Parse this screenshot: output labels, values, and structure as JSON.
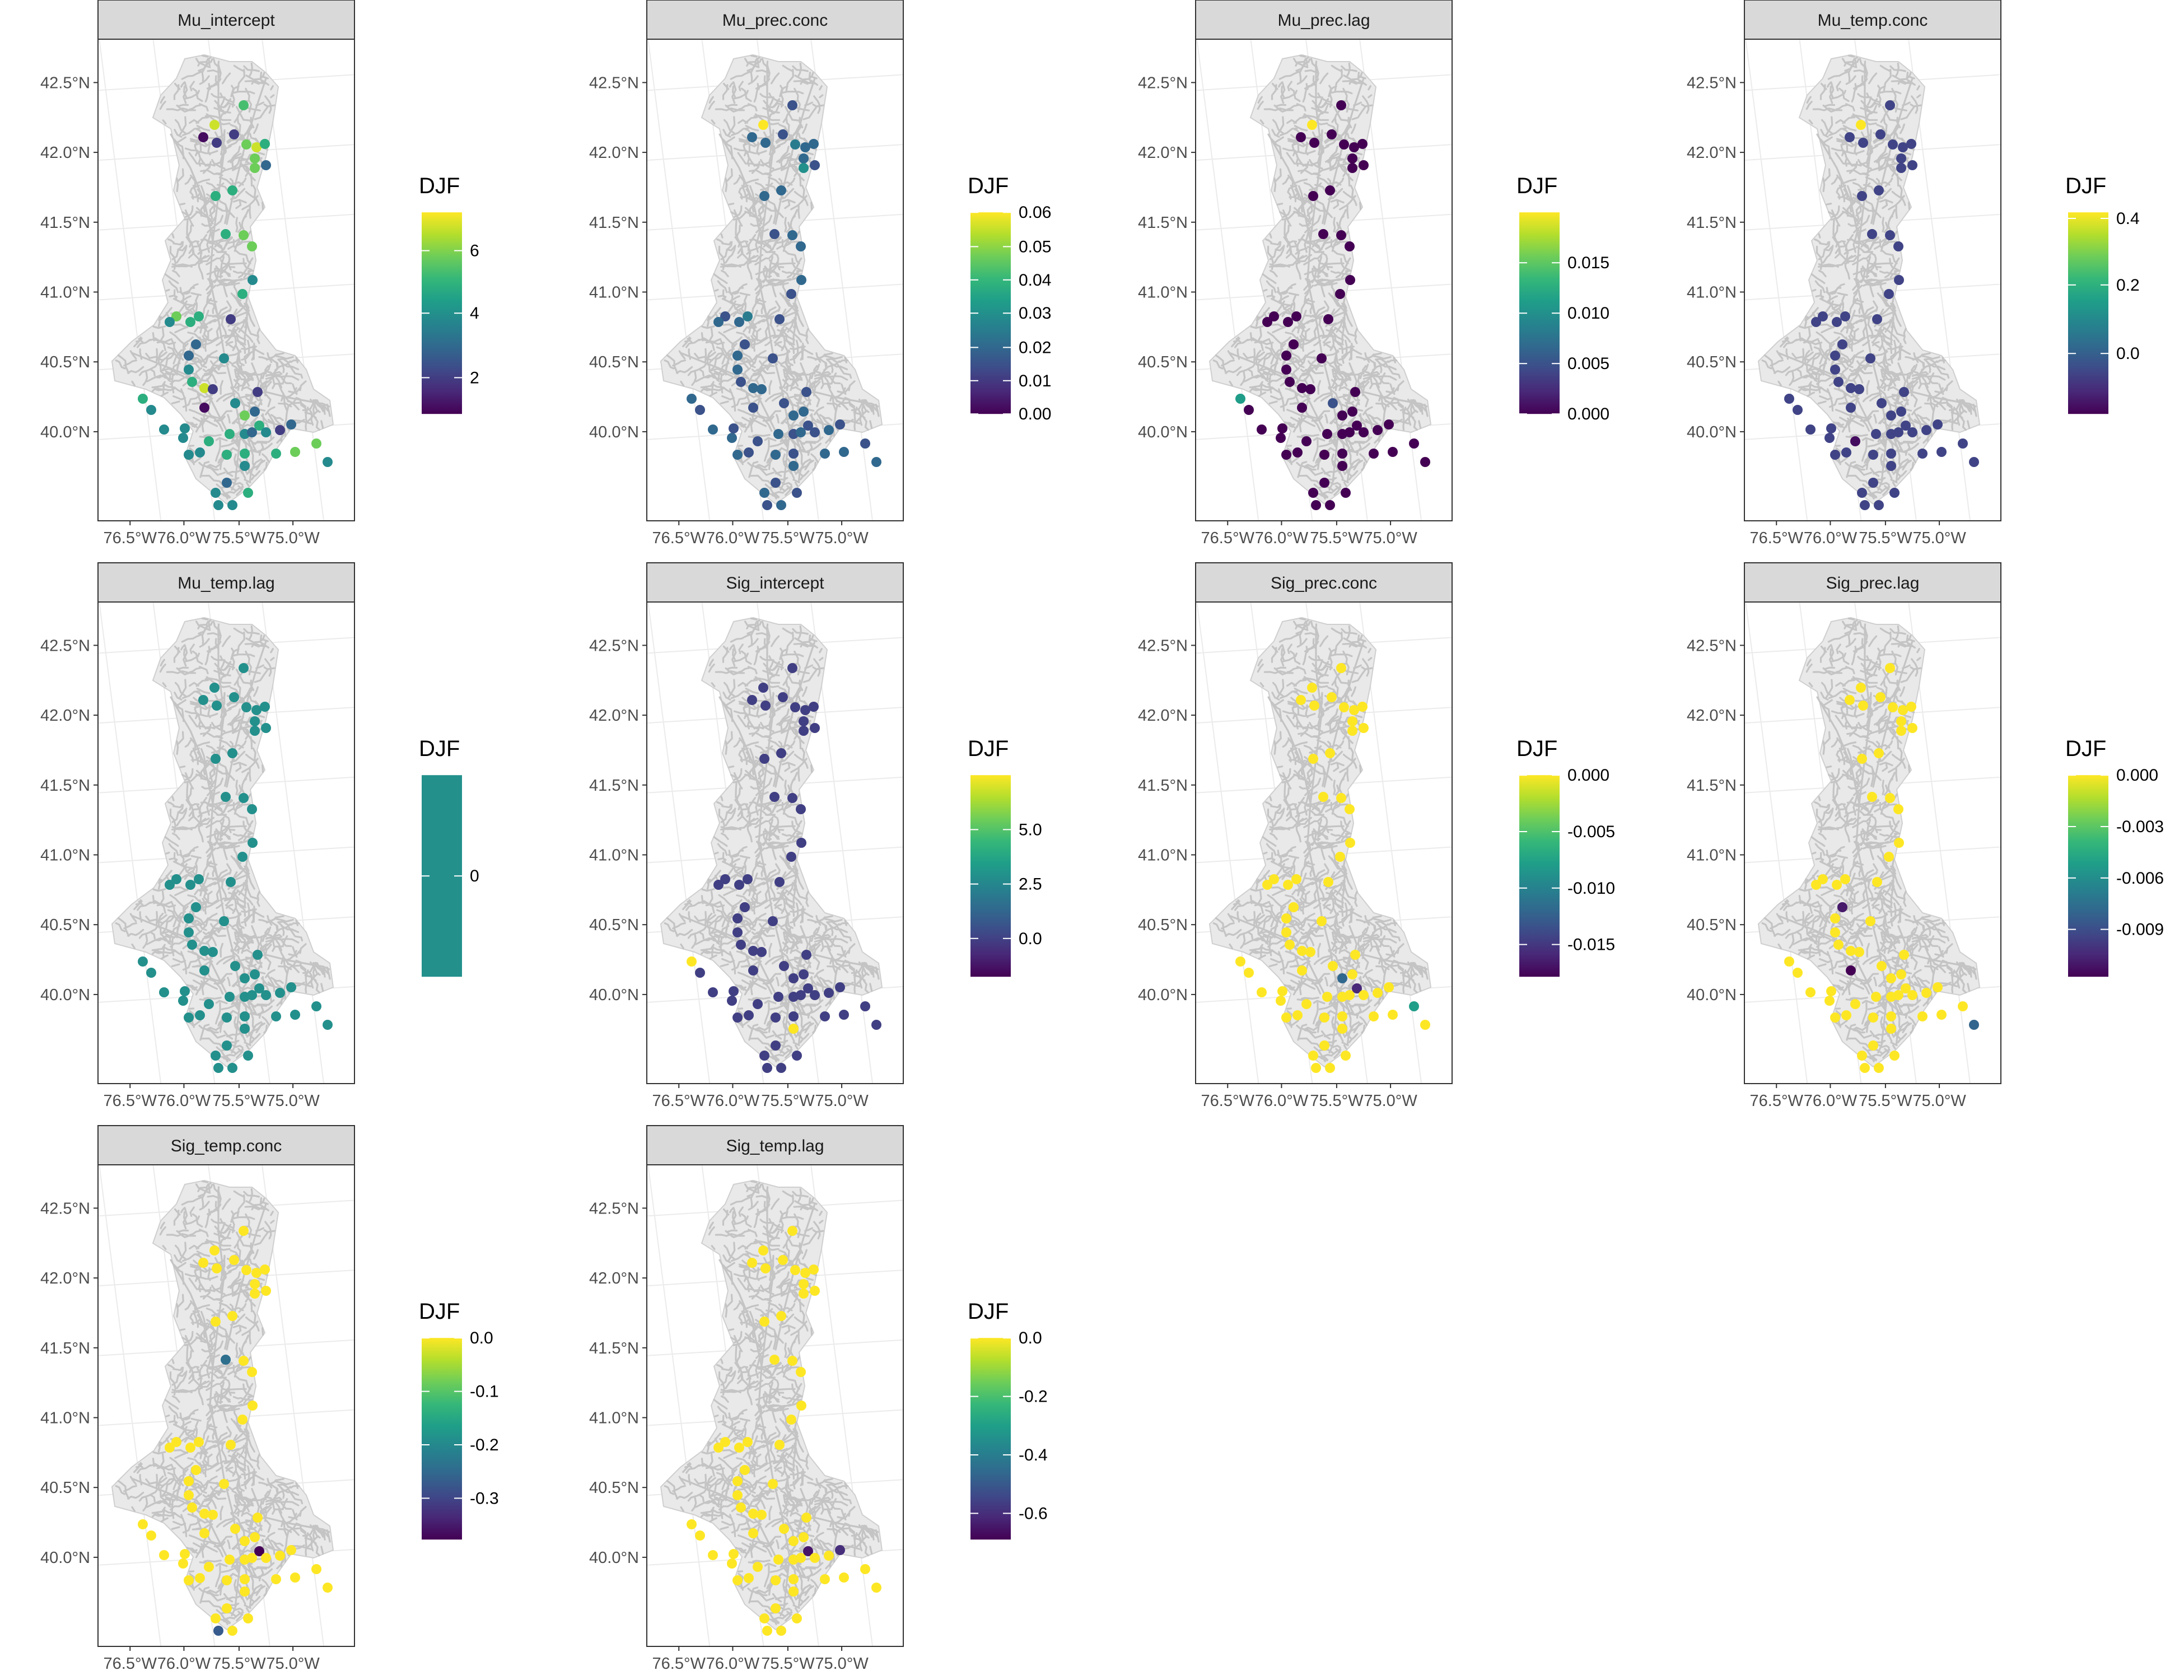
{
  "figure": {
    "lat_ticks": [
      "42.5°N",
      "42.0°N",
      "41.5°N",
      "41.0°N",
      "40.5°N",
      "40.0°N"
    ],
    "lon_ticks": [
      "76.5°W",
      "76.0°W",
      "75.5°W",
      "75.0°W"
    ],
    "colors": {
      "strip_bg": "#d9d9d9",
      "panel_border": "#333333",
      "graticule": "#ebebeb",
      "river": "#c4c4c4",
      "viridis": [
        "#440154",
        "#482878",
        "#3e4a89",
        "#31688e",
        "#26828e",
        "#1f9e89",
        "#35b779",
        "#6dcd59",
        "#b4de2c",
        "#fde725"
      ]
    }
  },
  "chart_data": [
    {
      "type": "map",
      "title": "Mu_intercept",
      "legend_title": "DJF",
      "legend_ticks": [
        "2",
        "4",
        "6"
      ],
      "tick_fracs": [
        0.18,
        0.5,
        0.81
      ],
      "min": 0.8,
      "max": 7.5,
      "values": [
        5.5,
        7,
        1,
        2,
        2,
        6,
        7,
        6,
        5,
        3,
        6,
        5,
        5,
        5,
        6,
        6,
        4,
        5,
        2,
        5,
        5,
        6,
        4,
        3,
        3,
        4,
        5,
        7,
        4,
        2,
        4,
        5,
        4,
        3,
        5,
        3,
        2,
        6,
        5,
        4,
        4,
        1,
        4,
        5,
        4,
        4,
        5,
        5,
        4,
        3,
        4,
        4,
        4,
        5,
        5,
        4,
        2,
        3,
        6,
        6,
        4,
        4
      ]
    },
    {
      "type": "map",
      "title": "Mu_prec.conc",
      "legend_title": "DJF",
      "legend_ticks": [
        "0.00",
        "0.01",
        "0.02",
        "0.03",
        "0.04",
        "0.05",
        "0.06"
      ],
      "tick_fracs": [
        0.0,
        0.165,
        0.33,
        0.5,
        0.665,
        0.83,
        1.0
      ],
      "min": 0.0,
      "max": 0.06,
      "values": [
        0.015,
        0.06,
        0.02,
        0.015,
        0.02,
        0.025,
        0.02,
        0.02,
        0.02,
        0.015,
        0.03,
        0.02,
        0.02,
        0.015,
        0.02,
        0.02,
        0.02,
        0.015,
        0.015,
        0.025,
        0.02,
        0.015,
        0.02,
        0.015,
        0.02,
        0.02,
        0.015,
        0.02,
        0.015,
        0.02,
        0.015,
        0.02,
        0.015,
        0.02,
        0.015,
        0.02,
        0.015,
        0.02,
        0.02,
        0.015,
        0.02,
        0.015,
        0.02,
        0.015,
        0.02,
        0.015,
        0.02,
        0.015,
        0.02,
        0.015,
        0.02,
        0.015,
        0.02,
        0.015,
        0.02,
        0.015,
        0.02,
        0.015,
        0.02,
        0.015,
        0.02,
        0.015
      ]
    },
    {
      "type": "map",
      "title": "Mu_prec.lag",
      "legend_title": "DJF",
      "legend_ticks": [
        "0.000",
        "0.005",
        "0.010",
        "0.015"
      ],
      "tick_fracs": [
        0.0,
        0.25,
        0.5,
        0.75
      ],
      "min": 0.0,
      "max": 0.02,
      "values": [
        0.0,
        0.02,
        0.0,
        0.0,
        0.0,
        0.0,
        0.0,
        0.0,
        0.0,
        0.0,
        0.0,
        0.0,
        0.0,
        0.0,
        0.0,
        0.0,
        0.0,
        0.0,
        0.0,
        0.0,
        0.0,
        0.0,
        0.0,
        0.0,
        0.0,
        0.0,
        0.0,
        0.0,
        0.0,
        0.0,
        0.005,
        0.0,
        0.0,
        0.0,
        0.0,
        0.0,
        0.0,
        0.0,
        0.011,
        0.0,
        0.0,
        0.0,
        0.0,
        0.0,
        0.0,
        0.0,
        0.0,
        0.0,
        0.0,
        0.0,
        0.0,
        0.0,
        0.0,
        0.0,
        0.0,
        0.0,
        0.0,
        0.0,
        0.0,
        0.0,
        0.0,
        0.0
      ]
    },
    {
      "type": "map",
      "title": "Mu_temp.conc",
      "legend_title": "DJF",
      "legend_ticks": [
        "0.0",
        "0.2",
        "0.4"
      ],
      "tick_fracs": [
        0.3,
        0.64,
        0.97
      ],
      "min": -0.17,
      "max": 0.42,
      "values": [
        -0.05,
        0.42,
        -0.05,
        -0.05,
        -0.05,
        -0.05,
        -0.05,
        -0.05,
        -0.05,
        -0.05,
        -0.05,
        -0.05,
        -0.05,
        -0.05,
        -0.05,
        -0.05,
        -0.05,
        -0.05,
        -0.05,
        -0.05,
        -0.05,
        -0.05,
        -0.05,
        -0.05,
        -0.05,
        -0.05,
        -0.05,
        -0.05,
        -0.05,
        -0.05,
        -0.05,
        -0.05,
        -0.05,
        -0.05,
        -0.05,
        -0.05,
        -0.05,
        -0.05,
        -0.05,
        -0.05,
        -0.05,
        -0.05,
        -0.05,
        -0.15,
        -0.05,
        -0.05,
        -0.05,
        -0.05,
        -0.05,
        -0.05,
        -0.05,
        -0.05,
        -0.05,
        -0.05,
        -0.05,
        -0.05,
        -0.05,
        -0.05,
        -0.05,
        -0.05,
        -0.05,
        -0.05
      ]
    },
    {
      "type": "map",
      "title": "Mu_temp.lag",
      "legend_title": "DJF",
      "legend_ticks": [
        "0"
      ],
      "tick_fracs": [
        0.5
      ],
      "min": -1,
      "max": 1,
      "values": [
        0,
        0,
        0,
        0,
        0,
        0,
        0,
        0,
        0,
        0,
        0,
        0,
        0,
        0,
        0,
        0,
        0,
        0,
        0,
        0,
        0,
        0,
        0,
        0,
        0,
        0,
        0,
        0,
        0,
        0,
        0,
        0,
        0,
        0,
        0,
        0,
        0,
        0,
        0,
        0,
        0,
        0,
        0,
        0,
        0,
        0,
        0,
        0,
        0,
        0,
        0,
        0,
        0,
        0,
        0,
        0,
        0,
        0,
        0,
        0,
        0,
        0
      ]
    },
    {
      "type": "map",
      "title": "Sig_intercept",
      "legend_title": "DJF",
      "legend_ticks": [
        "0.0",
        "2.5",
        "5.0"
      ],
      "tick_fracs": [
        0.19,
        0.46,
        0.73
      ],
      "min": -1.7,
      "max": 7.5,
      "values": [
        0,
        0,
        0,
        0,
        0,
        0,
        0,
        0,
        0,
        0,
        0,
        0,
        0,
        0,
        0,
        0,
        0,
        0,
        0,
        0,
        0,
        0,
        0,
        0,
        0,
        0,
        0,
        0,
        0,
        0,
        0,
        0,
        0,
        0,
        0,
        0,
        0,
        0,
        7.5,
        0,
        0,
        0,
        0,
        0,
        0,
        0,
        0,
        0,
        7.5,
        0,
        0,
        0,
        0,
        0,
        0,
        0,
        0,
        0,
        0,
        0,
        0,
        0
      ]
    },
    {
      "type": "map",
      "title": "Sig_prec.conc",
      "legend_title": "DJF",
      "legend_ticks": [
        "0.000",
        "-0.005",
        "-0.010",
        "-0.015"
      ],
      "tick_fracs": [
        1.0,
        0.72,
        0.44,
        0.16
      ],
      "min": -0.018,
      "max": 0.0,
      "values": [
        0,
        0,
        0,
        0,
        0,
        0,
        0,
        0,
        0,
        0,
        0,
        0,
        0,
        0,
        0,
        0,
        0,
        0,
        0,
        0,
        0,
        0,
        0,
        0,
        0,
        0,
        0,
        0,
        0,
        0,
        0,
        0,
        0,
        0,
        -0.016,
        0,
        0,
        -0.012,
        0,
        0,
        0,
        0,
        0,
        0,
        0,
        0,
        0,
        0,
        0,
        0,
        0,
        0,
        0,
        0,
        0,
        0,
        0,
        0,
        0,
        -0.008,
        0,
        0
      ]
    },
    {
      "type": "map",
      "title": "Sig_prec.lag",
      "legend_title": "DJF",
      "legend_ticks": [
        "0.000",
        "-0.003",
        "-0.006",
        "-0.009"
      ],
      "tick_fracs": [
        1.0,
        0.745,
        0.49,
        0.235
      ],
      "min": -0.0118,
      "max": 0.0,
      "values": [
        0,
        0,
        0,
        0,
        0,
        0,
        0,
        0,
        0,
        0,
        0,
        0,
        0,
        0,
        0,
        0,
        0,
        0,
        0,
        0,
        0,
        0,
        0,
        -0.011,
        0,
        0,
        0,
        0,
        0,
        0,
        0,
        0,
        0,
        0,
        0,
        0,
        0,
        0,
        0,
        0,
        0,
        -0.0118,
        0,
        0,
        0,
        0,
        0,
        0,
        0,
        0,
        0,
        0,
        0,
        0,
        0,
        0,
        0,
        0,
        0,
        0,
        -0.008,
        0
      ]
    },
    {
      "type": "map",
      "title": "Sig_temp.conc",
      "legend_title": "DJF",
      "legend_ticks": [
        "0.0",
        "-0.1",
        "-0.2",
        "-0.3"
      ],
      "tick_fracs": [
        1.0,
        0.735,
        0.47,
        0.205
      ],
      "min": -0.378,
      "max": 0.0,
      "values": [
        0,
        0,
        0,
        0,
        0,
        0,
        0,
        0,
        0,
        0,
        0,
        0,
        0,
        -0.24,
        0,
        0,
        0,
        0,
        0,
        0,
        0,
        0,
        0,
        0,
        0,
        0,
        0,
        0,
        0,
        0,
        0,
        0,
        0,
        0,
        -0.378,
        0,
        0,
        0,
        0,
        0,
        0,
        0,
        0,
        0,
        0,
        0,
        0,
        0,
        0,
        0,
        0,
        -0.27,
        0,
        0,
        0,
        0,
        0,
        0,
        0,
        0,
        0,
        0
      ]
    },
    {
      "type": "map",
      "title": "Sig_temp.lag",
      "legend_title": "DJF",
      "legend_ticks": [
        "0.0",
        "-0.2",
        "-0.4",
        "-0.6"
      ],
      "tick_fracs": [
        1.0,
        0.71,
        0.42,
        0.13
      ],
      "min": -0.69,
      "max": 0.0,
      "values": [
        0,
        0,
        0,
        0,
        0,
        0,
        0,
        0,
        0,
        0,
        0,
        0,
        0,
        0,
        0,
        0,
        0,
        0,
        0,
        0,
        0,
        0,
        0,
        0,
        0,
        0,
        0,
        0,
        0,
        0,
        0,
        0,
        0,
        0,
        -0.65,
        0,
        0,
        0,
        0,
        0,
        0,
        0,
        0,
        0,
        0,
        0,
        0,
        0,
        0,
        0,
        0,
        0,
        0,
        0,
        0,
        0,
        0,
        -0.6,
        0,
        0,
        0,
        0
      ]
    }
  ]
}
